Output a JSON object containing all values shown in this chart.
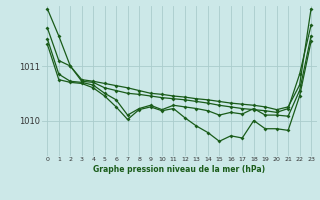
{
  "background_color": "#cce8e8",
  "grid_color": "#aacccc",
  "line_color": "#1a5c1a",
  "xlabel": "Graphe pression niveau de la mer (hPa)",
  "ylabel_ticks": [
    1010,
    1011
  ],
  "x_ticks": [
    0,
    1,
    2,
    3,
    4,
    5,
    6,
    7,
    8,
    9,
    10,
    11,
    12,
    13,
    14,
    15,
    16,
    17,
    18,
    19,
    20,
    21,
    22,
    23
  ],
  "xlim": [
    -0.5,
    23.5
  ],
  "ylim": [
    1009.35,
    1012.1
  ],
  "lines": [
    [
      1012.05,
      1011.55,
      1011.0,
      1010.75,
      1010.72,
      1010.68,
      1010.64,
      1010.6,
      1010.55,
      1010.5,
      1010.48,
      1010.45,
      1010.43,
      1010.4,
      1010.38,
      1010.35,
      1010.32,
      1010.3,
      1010.28,
      1010.25,
      1010.2,
      1010.25,
      1010.65,
      1012.05
    ],
    [
      1011.7,
      1011.1,
      1011.0,
      1010.72,
      1010.7,
      1010.6,
      1010.55,
      1010.5,
      1010.48,
      1010.45,
      1010.42,
      1010.4,
      1010.38,
      1010.35,
      1010.32,
      1010.28,
      1010.25,
      1010.22,
      1010.2,
      1010.18,
      1010.15,
      1010.22,
      1010.85,
      1011.75
    ],
    [
      1011.5,
      1010.85,
      1010.72,
      1010.7,
      1010.65,
      1010.5,
      1010.38,
      1010.1,
      1010.22,
      1010.28,
      1010.2,
      1010.28,
      1010.25,
      1010.22,
      1010.18,
      1010.1,
      1010.15,
      1010.12,
      1010.22,
      1010.1,
      1010.1,
      1010.08,
      1010.55,
      1011.55
    ],
    [
      1011.4,
      1010.75,
      1010.7,
      1010.68,
      1010.6,
      1010.45,
      1010.25,
      1010.02,
      1010.2,
      1010.25,
      1010.18,
      1010.22,
      1010.05,
      1009.9,
      1009.78,
      1009.62,
      1009.72,
      1009.68,
      1010.0,
      1009.85,
      1009.85,
      1009.82,
      1010.45,
      1011.45
    ]
  ]
}
